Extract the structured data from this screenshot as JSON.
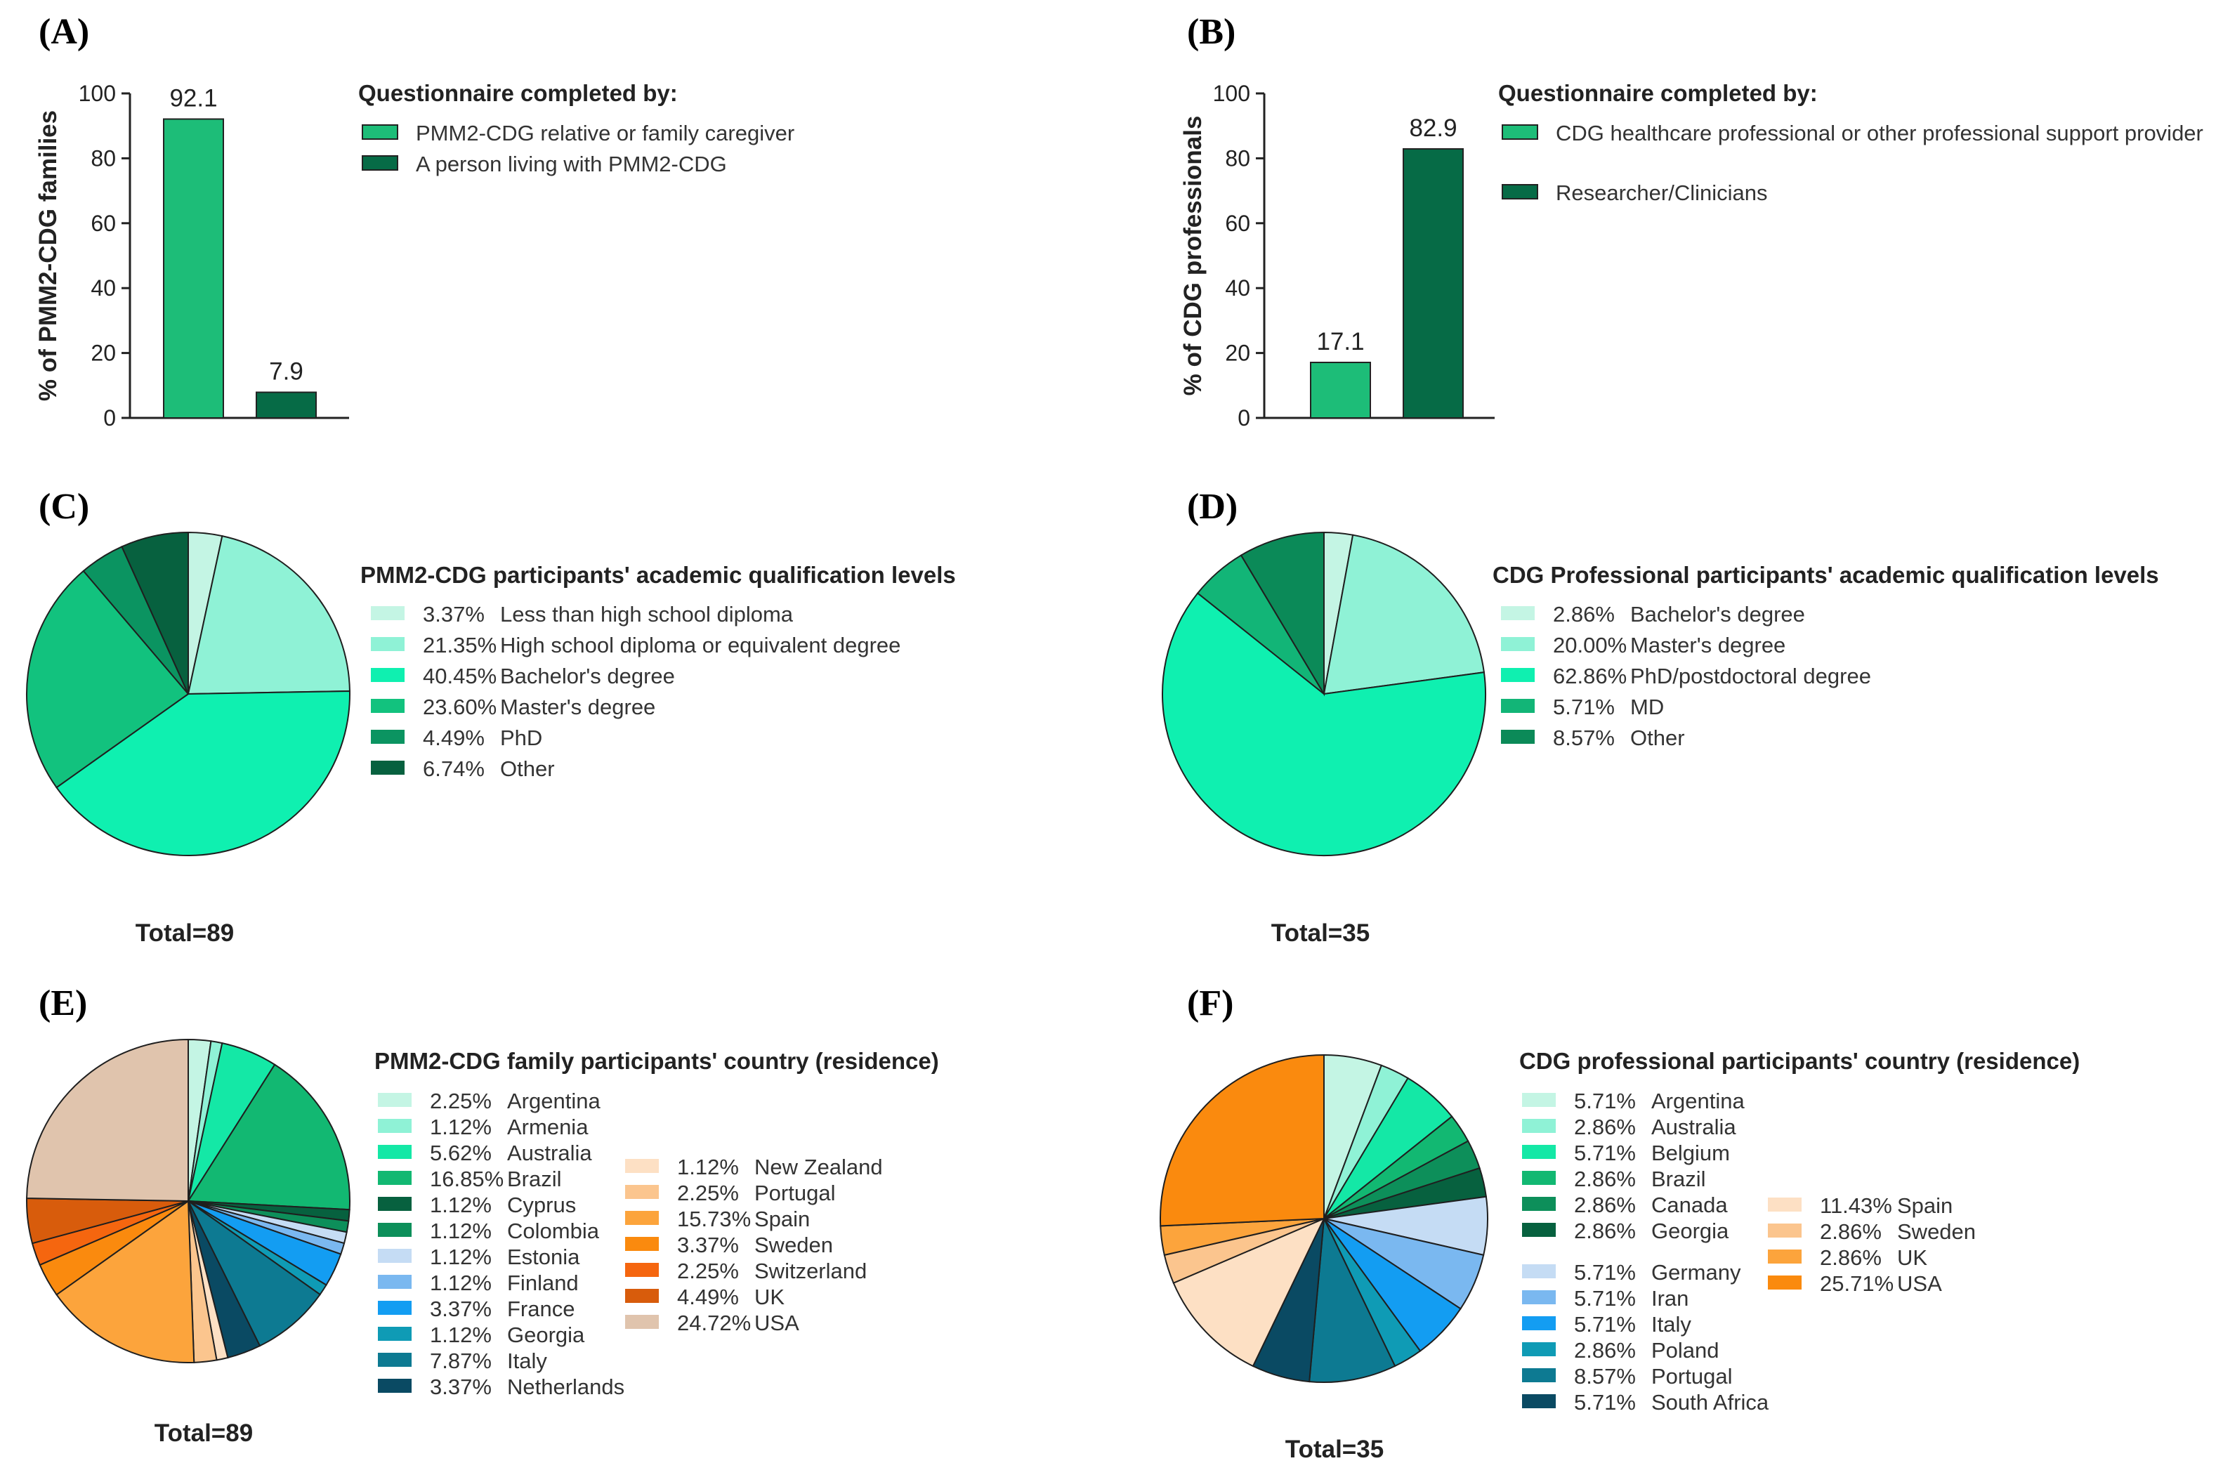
{
  "chart_data": [
    {
      "panel": "(A)",
      "type": "bar",
      "categories": [
        "PMM2-CDG relative or family caregiver",
        "A person living with PMM2-CDG"
      ],
      "values": [
        92.1,
        7.9
      ],
      "value_labels": [
        "92.1",
        "7.9"
      ],
      "colors": [
        "#1dbd78",
        "#066b46"
      ],
      "ylabel": "% of PMM2-CDG families",
      "ylim": [
        0,
        100
      ],
      "yticks": [
        "0",
        "20",
        "40",
        "60",
        "80",
        "100"
      ],
      "legend_title": "Questionnaire completed by:"
    },
    {
      "panel": "(B)",
      "type": "bar",
      "categories": [
        "CDG healthcare professional or other professional support provider",
        "Researcher/Clinicians"
      ],
      "values": [
        17.1,
        82.9
      ],
      "value_labels": [
        "17.1",
        "82.9"
      ],
      "colors": [
        "#1dbd78",
        "#066b46"
      ],
      "ylabel": "% of CDG professionals",
      "ylim": [
        0,
        100
      ],
      "yticks": [
        "0",
        "20",
        "40",
        "60",
        "80",
        "100"
      ],
      "legend_title": "Questionnaire completed by:"
    },
    {
      "panel": "(C)",
      "type": "pie",
      "title": "PMM2-CDG participants' academic qualification levels",
      "total": "Total=89",
      "slices": [
        {
          "pct": "3.37%",
          "value": 3.37,
          "label": "Less than high school diploma",
          "color": "#c4f5e4"
        },
        {
          "pct": "21.35%",
          "value": 21.35,
          "label": "High school diploma or equivalent degree",
          "color": "#8ff2d6"
        },
        {
          "pct": "40.45%",
          "value": 40.45,
          "label": "Bachelor's degree",
          "color": "#0ff0b0"
        },
        {
          "pct": "23.60%",
          "value": 23.6,
          "label": "Master's degree",
          "color": "#12c27e"
        },
        {
          "pct": "4.49%",
          "value": 4.49,
          "label": "PhD",
          "color": "#0b9461"
        },
        {
          "pct": "6.74%",
          "value": 6.74,
          "label": "Other",
          "color": "#07613f"
        }
      ]
    },
    {
      "panel": "(D)",
      "type": "pie",
      "title": "CDG Professional participants' academic qualification levels",
      "total": "Total=35",
      "slices": [
        {
          "pct": "2.86%",
          "value": 2.86,
          "label": "Bachelor's degree",
          "color": "#c4f5e4"
        },
        {
          "pct": "20.00%",
          "value": 20.0,
          "label": "Master's degree",
          "color": "#8ff2d6"
        },
        {
          "pct": "62.86%",
          "value": 62.86,
          "label": "PhD/postdoctoral degree",
          "color": "#0ff0b0"
        },
        {
          "pct": "5.71%",
          "value": 5.71,
          "label": "MD",
          "color": "#12b577"
        },
        {
          "pct": "8.57%",
          "value": 8.57,
          "label": "Other",
          "color": "#0b8a58"
        }
      ]
    },
    {
      "panel": "(E)",
      "type": "pie",
      "title": "PMM2-CDG family participants' country (residence)",
      "total": "Total=89",
      "slices": [
        {
          "pct": "2.25%",
          "value": 2.25,
          "label": "Argentina",
          "color": "#c4f5e4"
        },
        {
          "pct": "1.12%",
          "value": 1.12,
          "label": "Armenia",
          "color": "#8ff2d6"
        },
        {
          "pct": "5.62%",
          "value": 5.62,
          "label": "Australia",
          "color": "#14e8a6"
        },
        {
          "pct": "16.85%",
          "value": 16.85,
          "label": "Brazil",
          "color": "#12b872"
        },
        {
          "pct": "1.12%",
          "value": 1.12,
          "label": "Cyprus",
          "color": "#07613f"
        },
        {
          "pct": "1.12%",
          "value": 1.12,
          "label": "Colombia",
          "color": "#0d8f5a"
        },
        {
          "pct": "1.12%",
          "value": 1.12,
          "label": "Estonia",
          "color": "#c5dcf4"
        },
        {
          "pct": "1.12%",
          "value": 1.12,
          "label": "Finland",
          "color": "#7ab8f0"
        },
        {
          "pct": "3.37%",
          "value": 3.37,
          "label": "France",
          "color": "#139df2"
        },
        {
          "pct": "1.12%",
          "value": 1.12,
          "label": "Georgia",
          "color": "#0f9bb5"
        },
        {
          "pct": "7.87%",
          "value": 7.87,
          "label": "Italy",
          "color": "#0d7a92"
        },
        {
          "pct": "3.37%",
          "value": 3.37,
          "label": "Netherlands",
          "color": "#0a4a63"
        },
        {
          "pct": "1.12%",
          "value": 1.12,
          "label": "New Zealand",
          "color": "#fde0c4"
        },
        {
          "pct": "2.25%",
          "value": 2.25,
          "label": "Portugal",
          "color": "#fbc58e"
        },
        {
          "pct": "15.73%",
          "value": 15.73,
          "label": "Spain",
          "color": "#fca43c"
        },
        {
          "pct": "3.37%",
          "value": 3.37,
          "label": "Sweden",
          "color": "#fa8a0e"
        },
        {
          "pct": "2.25%",
          "value": 2.25,
          "label": "Switzerland",
          "color": "#f5660f"
        },
        {
          "pct": "4.49%",
          "value": 4.49,
          "label": "UK",
          "color": "#d85c0c"
        },
        {
          "pct": "24.72%",
          "value": 24.72,
          "label": "USA",
          "color": "#e0c4ad"
        }
      ]
    },
    {
      "panel": "(F)",
      "type": "pie",
      "title": "CDG professional participants' country (residence)",
      "total": "Total=35",
      "slices": [
        {
          "pct": "5.71%",
          "value": 5.71,
          "label": "Argentina",
          "color": "#c4f5e4"
        },
        {
          "pct": "2.86%",
          "value": 2.86,
          "label": "Australia",
          "color": "#8ff2d6"
        },
        {
          "pct": "5.71%",
          "value": 5.71,
          "label": "Belgium",
          "color": "#14e8a6"
        },
        {
          "pct": "2.86%",
          "value": 2.86,
          "label": "Brazil",
          "color": "#12b872"
        },
        {
          "pct": "2.86%",
          "value": 2.86,
          "label": "Canada",
          "color": "#0d8f5a"
        },
        {
          "pct": "2.86%",
          "value": 2.86,
          "label": "Georgia",
          "color": "#07613f"
        },
        {
          "pct": "5.71%",
          "value": 5.71,
          "label": "Germany",
          "color": "#c5dcf4"
        },
        {
          "pct": "5.71%",
          "value": 5.71,
          "label": "Iran",
          "color": "#7ab8f0"
        },
        {
          "pct": "5.71%",
          "value": 5.71,
          "label": "Italy",
          "color": "#139df2"
        },
        {
          "pct": "2.86%",
          "value": 2.86,
          "label": "Poland",
          "color": "#0f9bb5"
        },
        {
          "pct": "8.57%",
          "value": 8.57,
          "label": "Portugal",
          "color": "#0d7a92"
        },
        {
          "pct": "5.71%",
          "value": 5.71,
          "label": "South Africa",
          "color": "#0a4a63"
        },
        {
          "pct": "11.43%",
          "value": 11.43,
          "label": "Spain",
          "color": "#fde0c4"
        },
        {
          "pct": "2.86%",
          "value": 2.86,
          "label": "Sweden",
          "color": "#fbc58e"
        },
        {
          "pct": "2.86%",
          "value": 2.86,
          "label": "UK",
          "color": "#fca43c"
        },
        {
          "pct": "25.71%",
          "value": 25.71,
          "label": "USA",
          "color": "#fa8a0e"
        }
      ]
    }
  ]
}
